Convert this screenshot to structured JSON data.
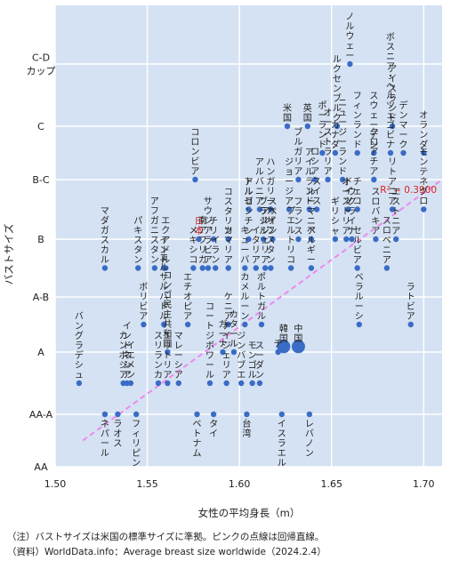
{
  "chart_data": {
    "type": "scatter",
    "xlabel": "女性の平均身長（m）",
    "ylabel": "バストサイズ",
    "x_ticks": [
      "1.50",
      "1.55",
      "1.60",
      "1.65",
      "1.70"
    ],
    "xlim": [
      1.5,
      1.71
    ],
    "y_categories": [
      "AA",
      "AA-A",
      "A",
      "A-B",
      "B",
      "B-C",
      "C",
      "C-D\nカップ"
    ],
    "grid": true,
    "trendline": {
      "style": "pink dashed",
      "r2_label": "R² = 0.3900",
      "x": [
        1.515,
        1.71
      ],
      "y": [
        0.5,
        5.0
      ]
    },
    "points": [
      {
        "label": "ノルウェー",
        "x": 1.66,
        "y": 7
      },
      {
        "label": "ルクセンブルク",
        "x": 1.653,
        "y": 6
      },
      {
        "label": "アイスランド",
        "x": 1.683,
        "y": 6
      },
      {
        "label": "米国",
        "x": 1.626,
        "y": 6
      },
      {
        "label": "英国",
        "x": 1.637,
        "y": 6
      },
      {
        "label": "フィンランド",
        "x": 1.664,
        "y": 5.5
      },
      {
        "label": "ポーランド",
        "x": 1.645,
        "y": 5.5
      },
      {
        "label": "カナダ",
        "x": 1.652,
        "y": 5.5
      },
      {
        "label": "スウェーデン",
        "x": 1.673,
        "y": 5.5
      },
      {
        "label": "ボスニア・ヘルツェゴビナ",
        "x": 1.682,
        "y": 5.5
      },
      {
        "label": "デンマーク",
        "x": 1.689,
        "y": 5.5
      },
      {
        "label": "オランダ",
        "x": 1.7,
        "y": 5.5
      },
      {
        "label": "ブルガリア",
        "x": 1.632,
        "y": 5
      },
      {
        "label": "ロシア",
        "x": 1.641,
        "y": 5
      },
      {
        "label": "オーストラリア",
        "x": 1.648,
        "y": 5
      },
      {
        "label": "ニュージーランド",
        "x": 1.656,
        "y": 5
      },
      {
        "label": "コロンビア",
        "x": 1.576,
        "y": 5
      },
      {
        "label": "クロアチア",
        "x": 1.673,
        "y": 5
      },
      {
        "label": "ハンガリー",
        "x": 1.617,
        "y": 4.5
      },
      {
        "label": "アルバニア",
        "x": 1.611,
        "y": 4.5
      },
      {
        "label": "トルコ",
        "x": 1.605,
        "y": 4.5
      },
      {
        "label": "ジョージア",
        "x": 1.627,
        "y": 4.5
      },
      {
        "label": "アイルランド",
        "x": 1.638,
        "y": 4.5
      },
      {
        "label": "スイス",
        "x": 1.642,
        "y": 4.5
      },
      {
        "label": "ドイツ",
        "x": 1.659,
        "y": 4.5
      },
      {
        "label": "チェコ",
        "x": 1.664,
        "y": 4.5
      },
      {
        "label": "リトアニア",
        "x": 1.683,
        "y": 4.5
      },
      {
        "label": "モンテネグロ",
        "x": 1.7,
        "y": 4.5
      },
      {
        "label": "コスタリカ",
        "x": 1.594,
        "y": 4
      },
      {
        "label": "チリ",
        "x": 1.586,
        "y": 4
      },
      {
        "label": "日本",
        "x": 1.578,
        "y": 4
      },
      {
        "label": "アルゼンチン",
        "x": 1.605,
        "y": 4
      },
      {
        "label": "スペイン",
        "x": 1.618,
        "y": 4
      },
      {
        "label": "ブラジル",
        "x": 1.613,
        "y": 4
      },
      {
        "label": "ルーマニア",
        "x": 1.639,
        "y": 4
      },
      {
        "label": "フランス",
        "x": 1.632,
        "y": 4
      },
      {
        "label": "ギリシャ",
        "x": 1.652,
        "y": 4
      },
      {
        "label": "ウクライナ",
        "x": 1.661,
        "y": 4
      },
      {
        "label": "スロバキア",
        "x": 1.674,
        "y": 4
      },
      {
        "label": "オーストリア",
        "x": 1.658,
        "y": 4
      },
      {
        "label": "エストニア",
        "x": 1.685,
        "y": 4
      },
      {
        "label": "アフガニスタン",
        "x": 1.554,
        "y": 3.5
      },
      {
        "label": "マダガスカル",
        "x": 1.527,
        "y": 3.5
      },
      {
        "label": "パキスタン",
        "x": 1.545,
        "y": 3.5
      },
      {
        "label": "エクアドル",
        "x": 1.56,
        "y": 3.5
      },
      {
        "label": "インド",
        "x": 1.559,
        "y": 3.5
      },
      {
        "label": "メキシコ",
        "x": 1.575,
        "y": 3.5
      },
      {
        "label": "サウジアラビア",
        "x": 1.583,
        "y": 3.5
      },
      {
        "label": "南アフリカ",
        "x": 1.58,
        "y": 3.5
      },
      {
        "label": "イラン",
        "x": 1.587,
        "y": 3.5
      },
      {
        "label": "ソマリア",
        "x": 1.594,
        "y": 3.5
      },
      {
        "label": "アルジェリア",
        "x": 1.614,
        "y": 3.5
      },
      {
        "label": "イタリア",
        "x": 1.609,
        "y": 3.5
      },
      {
        "label": "カザフスタン",
        "x": 1.617,
        "y": 3.5
      },
      {
        "label": "キューバ",
        "x": 1.603,
        "y": 3.5
      },
      {
        "label": "プエルトリコ",
        "x": 1.628,
        "y": 3.5
      },
      {
        "label": "ベルギー",
        "x": 1.639,
        "y": 3.5
      },
      {
        "label": "セルビア",
        "x": 1.664,
        "y": 3.5
      },
      {
        "label": "スロベニア",
        "x": 1.68,
        "y": 3.5
      },
      {
        "label": "ボリビア",
        "x": 1.548,
        "y": 2.5
      },
      {
        "label": "エルサルバドル",
        "x": 1.559,
        "y": 2.5
      },
      {
        "label": "エチオピア",
        "x": 1.572,
        "y": 2.5
      },
      {
        "label": "ケニア",
        "x": 1.594,
        "y": 2.5
      },
      {
        "label": "ポルトガル",
        "x": 1.612,
        "y": 2.5
      },
      {
        "label": "カメルーン",
        "x": 1.603,
        "y": 2.5
      },
      {
        "label": "ベラルーシ",
        "x": 1.665,
        "y": 2.5
      },
      {
        "label": "ラトビア",
        "x": 1.693,
        "y": 2.5
      },
      {
        "label": "中国",
        "x": 1.632,
        "y": 2.1
      },
      {
        "label": "韓国",
        "x": 1.624,
        "y": 2.1
      },
      {
        "label": "チ",
        "x": 1.621,
        "y": 2
      },
      {
        "label": "コンゴ民主共和国",
        "x": 1.561,
        "y": 2
      },
      {
        "label": "ガーナ",
        "x": 1.591,
        "y": 2
      },
      {
        "label": "カタール",
        "x": 1.597,
        "y": 2
      },
      {
        "label": "バングラデシュ",
        "x": 1.513,
        "y": 1.5
      },
      {
        "label": "カンボジア",
        "x": 1.537,
        "y": 1.5
      },
      {
        "label": "イエメン",
        "x": 1.541,
        "y": 1.5
      },
      {
        "label": "インドネシア",
        "x": 1.539,
        "y": 1.5
      },
      {
        "label": "スリランカ",
        "x": 1.556,
        "y": 1.5
      },
      {
        "label": "エリトリア",
        "x": 1.561,
        "y": 1.5
      },
      {
        "label": "マレーシア",
        "x": 1.567,
        "y": 1.5
      },
      {
        "label": "コートジボワール",
        "x": 1.584,
        "y": 1.5
      },
      {
        "label": "ナイジェリア",
        "x": 1.593,
        "y": 1.5
      },
      {
        "label": "スーダン",
        "x": 1.611,
        "y": 1.5
      },
      {
        "label": "モンゴル",
        "x": 1.607,
        "y": 1.5
      },
      {
        "label": "ジンバブエ",
        "x": 1.601,
        "y": 1.5
      },
      {
        "label": "台湾",
        "x": 1.604,
        "y": 1
      },
      {
        "label": "イスラエル",
        "x": 1.623,
        "y": 1
      },
      {
        "label": "レバノン",
        "x": 1.638,
        "y": 1
      },
      {
        "label": "ネパール",
        "x": 1.527,
        "y": 1
      },
      {
        "label": "ラオス",
        "x": 1.534,
        "y": 1
      },
      {
        "label": "フィリピン",
        "x": 1.544,
        "y": 1
      },
      {
        "label": "ベトナム",
        "x": 1.577,
        "y": 1
      },
      {
        "label": "タイ",
        "x": 1.586,
        "y": 1
      }
    ],
    "highlight": [
      "日本"
    ],
    "colors": {
      "point": "#3a6cc6",
      "grid": "#ffffff",
      "plot_bg": "#d5e2f3",
      "trend": "#ee88ee",
      "highlight_label": "#e02020",
      "r2": "#e02020"
    }
  },
  "notes": {
    "line1": "（注）バストサイズは米国の標準サイズに準拠。ピンクの点線は回帰直線。",
    "line2": "（資料）WorldData.info：Average breast size worldwide（2024.2.4）"
  }
}
